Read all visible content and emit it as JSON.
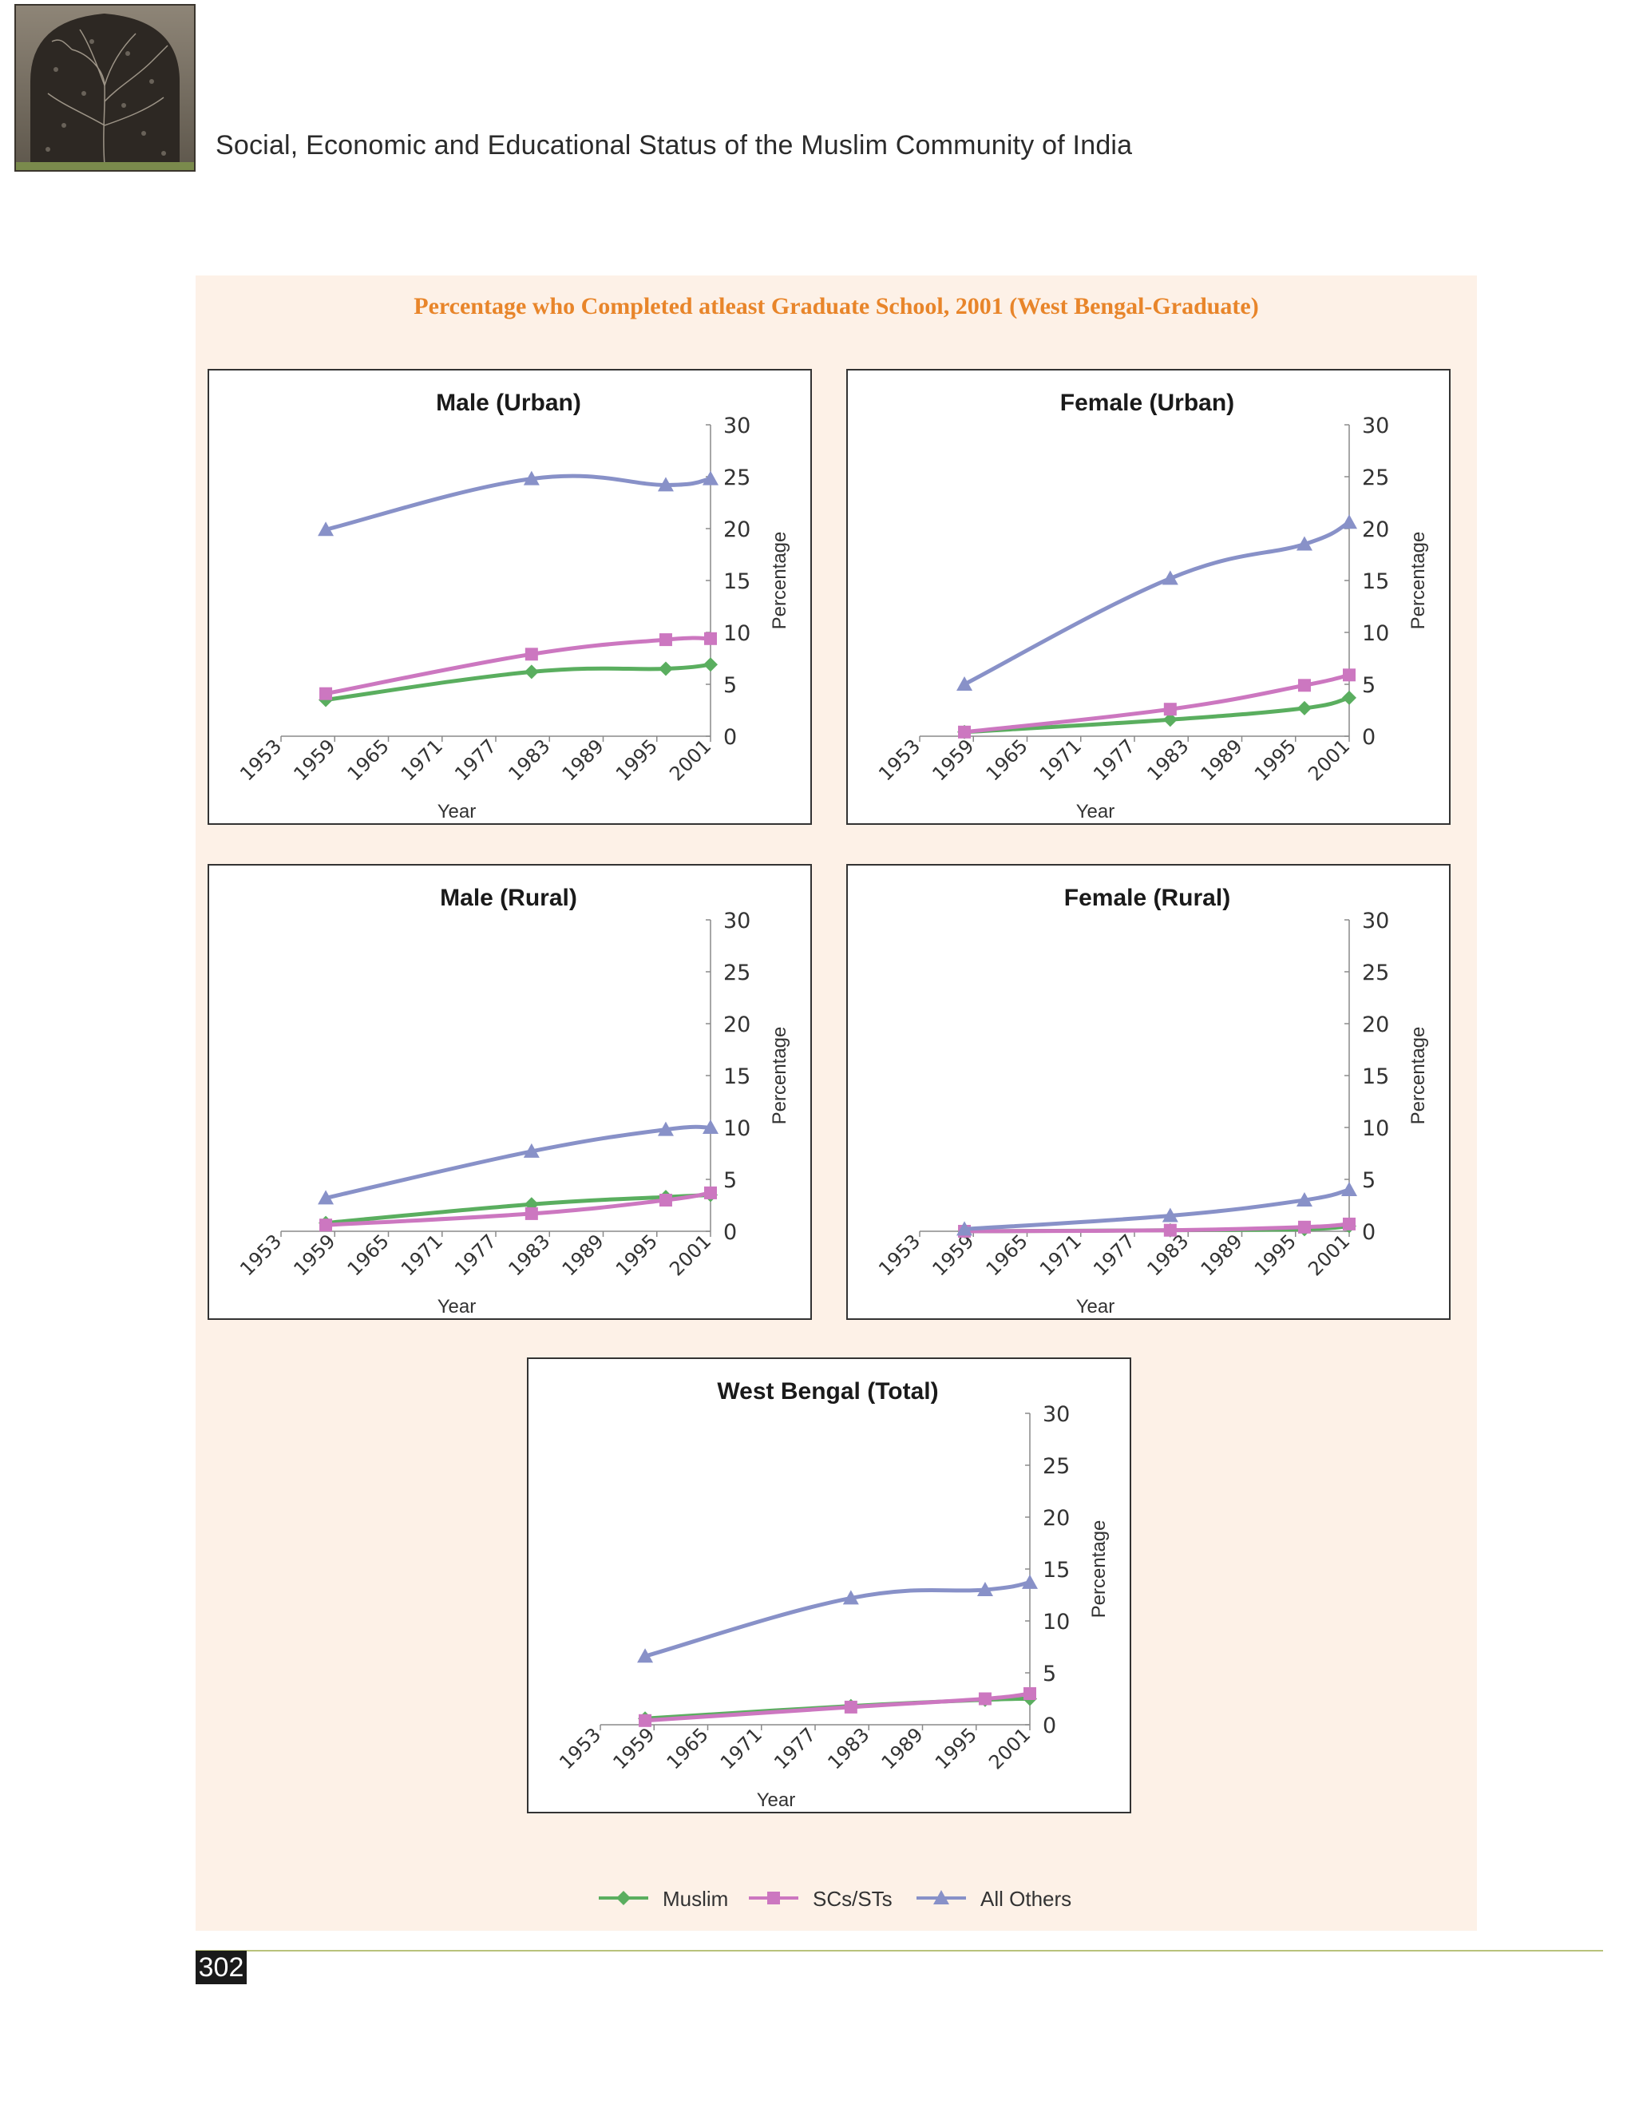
{
  "header": {
    "title": "Social, Economic and Educational Status of the Muslim Community of India",
    "photo_icon": "jali-window-photo"
  },
  "figure": {
    "title": "Percentage who Completed atleast Graduate School, 2001 (West Bengal-Graduate)"
  },
  "legend": [
    {
      "label": "Muslim",
      "color": "#5aae5f",
      "marker": "diamond"
    },
    {
      "label": "SCs/STs",
      "color": "#cc77c0",
      "marker": "square"
    },
    {
      "label": "All Others",
      "color": "#8891c8",
      "marker": "triangle"
    }
  ],
  "page_number": "302",
  "chart_data": [
    {
      "type": "line",
      "title": "Male (Urban)",
      "xlabel": "Year",
      "ylabel": "Percentage",
      "x_ticks": [
        "1953",
        "1959",
        "1965",
        "1971",
        "1977",
        "1983",
        "1989",
        "1995",
        "2001"
      ],
      "xlim": [
        1953,
        2001
      ],
      "ylim": [
        0,
        30
      ],
      "y_ticks": [
        "0",
        "5",
        "10",
        "15",
        "20",
        "25",
        "30"
      ],
      "x": [
        1958,
        1981,
        1996,
        2001
      ],
      "series": [
        {
          "name": "Muslim",
          "values": [
            3.5,
            6.2,
            6.5,
            6.9
          ]
        },
        {
          "name": "SCs/STs",
          "values": [
            4.1,
            7.9,
            9.3,
            9.4
          ]
        },
        {
          "name": "All Others",
          "values": [
            19.9,
            24.8,
            24.2,
            24.8
          ]
        }
      ]
    },
    {
      "type": "line",
      "title": "Female (Urban)",
      "xlabel": "Year",
      "ylabel": "Percentage",
      "x_ticks": [
        "1953",
        "1959",
        "1965",
        "1971",
        "1977",
        "1983",
        "1989",
        "1995",
        "2001"
      ],
      "xlim": [
        1953,
        2001
      ],
      "ylim": [
        0,
        30
      ],
      "y_ticks": [
        "0",
        "5",
        "10",
        "15",
        "20",
        "25",
        "30"
      ],
      "x": [
        1958,
        1981,
        1996,
        2001
      ],
      "series": [
        {
          "name": "Muslim",
          "values": [
            0.4,
            1.6,
            2.7,
            3.7
          ]
        },
        {
          "name": "SCs/STs",
          "values": [
            0.4,
            2.6,
            4.9,
            5.9
          ]
        },
        {
          "name": "All Others",
          "values": [
            5.0,
            15.2,
            18.5,
            20.6
          ]
        }
      ]
    },
    {
      "type": "line",
      "title": "Male (Rural)",
      "xlabel": "Year",
      "ylabel": "Percentage",
      "x_ticks": [
        "1953",
        "1959",
        "1965",
        "1971",
        "1977",
        "1983",
        "1989",
        "1995",
        "2001"
      ],
      "xlim": [
        1953,
        2001
      ],
      "ylim": [
        0,
        30
      ],
      "y_ticks": [
        "0",
        "5",
        "10",
        "15",
        "20",
        "25",
        "30"
      ],
      "x": [
        1958,
        1981,
        1996,
        2001
      ],
      "series": [
        {
          "name": "Muslim",
          "values": [
            0.8,
            2.6,
            3.3,
            3.5
          ]
        },
        {
          "name": "SCs/STs",
          "values": [
            0.6,
            1.7,
            3.0,
            3.7
          ]
        },
        {
          "name": "All Others",
          "values": [
            3.2,
            7.7,
            9.8,
            10.0
          ]
        }
      ]
    },
    {
      "type": "line",
      "title": "Female (Rural)",
      "xlabel": "Year",
      "ylabel": "Percentage",
      "x_ticks": [
        "1953",
        "1959",
        "1965",
        "1971",
        "1977",
        "1983",
        "1989",
        "1995",
        "2001"
      ],
      "xlim": [
        1953,
        2001
      ],
      "ylim": [
        0,
        30
      ],
      "y_ticks": [
        "0",
        "5",
        "10",
        "15",
        "20",
        "25",
        "30"
      ],
      "x": [
        1958,
        1981,
        1996,
        2001
      ],
      "series": [
        {
          "name": "Muslim",
          "values": [
            0.0,
            0.1,
            0.2,
            0.5
          ]
        },
        {
          "name": "SCs/STs",
          "values": [
            0.0,
            0.1,
            0.4,
            0.7
          ]
        },
        {
          "name": "All Others",
          "values": [
            0.2,
            1.5,
            3.0,
            4.0
          ]
        }
      ]
    },
    {
      "type": "line",
      "title": "West Bengal (Total)",
      "xlabel": "Year",
      "ylabel": "Percentage",
      "x_ticks": [
        "1953",
        "1959",
        "1965",
        "1971",
        "1977",
        "1983",
        "1989",
        "1995",
        "2001"
      ],
      "xlim": [
        1953,
        2001
      ],
      "ylim": [
        0,
        30
      ],
      "y_ticks": [
        "0",
        "5",
        "10",
        "15",
        "20",
        "25",
        "30"
      ],
      "x": [
        1958,
        1981,
        1996,
        2001
      ],
      "series": [
        {
          "name": "Muslim",
          "values": [
            0.6,
            1.8,
            2.4,
            2.5
          ]
        },
        {
          "name": "SCs/STs",
          "values": [
            0.4,
            1.7,
            2.5,
            3.0
          ]
        },
        {
          "name": "All Others",
          "values": [
            6.6,
            12.2,
            13.0,
            13.7
          ]
        }
      ]
    }
  ]
}
